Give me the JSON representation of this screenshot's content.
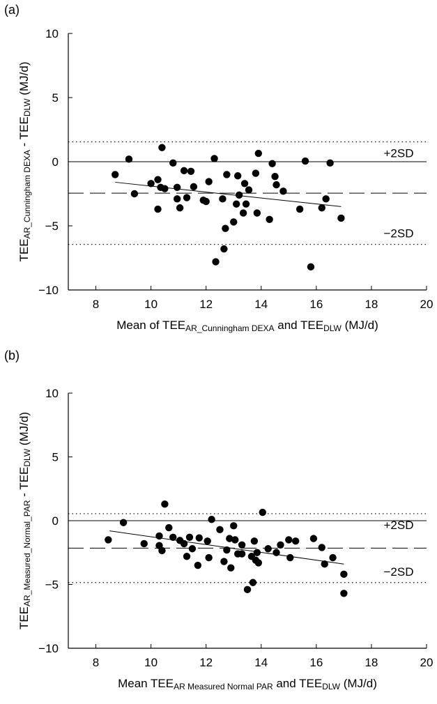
{
  "chart_data": [
    {
      "type": "scatter",
      "panel_label": "(a)",
      "xlabel": {
        "main": "Mean of TEE",
        "sub": "AR_Cunningham DEXA",
        "mid": " and TEE",
        "sub2": "DLW",
        "end": " (MJ/d)"
      },
      "ylabel": {
        "main": "TEE",
        "sub": "AR_Cunningham DEXA",
        "mid": " - TEE",
        "sub2": "DLW",
        "end": " (MJ/d)"
      },
      "xlim": [
        7,
        20
      ],
      "ylim": [
        -10,
        10
      ],
      "x_ticks": [
        8,
        10,
        12,
        14,
        16,
        18,
        20
      ],
      "y_ticks": [
        -10,
        -5,
        0,
        5,
        10
      ],
      "reference_lines": {
        "zero": 0,
        "mean_bias": -2.45,
        "upper_2sd": 1.55,
        "lower_2sd": -6.45
      },
      "sd_labels": {
        "upper": "+2SD",
        "lower": "−2SD"
      },
      "trend_line": {
        "x": [
          8.7,
          16.9
        ],
        "y": [
          -1.6,
          -3.5
        ]
      },
      "points": [
        {
          "x": 8.7,
          "y": -1.0
        },
        {
          "x": 9.2,
          "y": 0.2
        },
        {
          "x": 9.4,
          "y": -2.5
        },
        {
          "x": 10.0,
          "y": -1.7
        },
        {
          "x": 10.25,
          "y": -1.4
        },
        {
          "x": 10.25,
          "y": -3.7
        },
        {
          "x": 10.35,
          "y": -2.0
        },
        {
          "x": 10.4,
          "y": 1.1
        },
        {
          "x": 10.5,
          "y": -2.1
        },
        {
          "x": 10.8,
          "y": -0.1
        },
        {
          "x": 10.95,
          "y": -2.0
        },
        {
          "x": 10.95,
          "y": -2.9
        },
        {
          "x": 11.05,
          "y": -3.6
        },
        {
          "x": 11.2,
          "y": -0.7
        },
        {
          "x": 11.3,
          "y": -2.8
        },
        {
          "x": 11.45,
          "y": -0.75
        },
        {
          "x": 11.55,
          "y": -1.95
        },
        {
          "x": 11.9,
          "y": -3.0
        },
        {
          "x": 12.0,
          "y": -3.1
        },
        {
          "x": 12.1,
          "y": -1.55
        },
        {
          "x": 12.3,
          "y": 0.25
        },
        {
          "x": 12.35,
          "y": -7.8
        },
        {
          "x": 12.6,
          "y": -2.9
        },
        {
          "x": 12.65,
          "y": -6.8
        },
        {
          "x": 12.7,
          "y": -5.2
        },
        {
          "x": 12.75,
          "y": -1.0
        },
        {
          "x": 13.0,
          "y": -4.7
        },
        {
          "x": 13.1,
          "y": -3.3
        },
        {
          "x": 13.15,
          "y": -1.1
        },
        {
          "x": 13.2,
          "y": -2.6
        },
        {
          "x": 13.35,
          "y": -4.0
        },
        {
          "x": 13.4,
          "y": -1.7
        },
        {
          "x": 13.45,
          "y": -3.3
        },
        {
          "x": 13.55,
          "y": -2.2
        },
        {
          "x": 13.8,
          "y": -0.9
        },
        {
          "x": 13.85,
          "y": -4.0
        },
        {
          "x": 13.9,
          "y": 0.65
        },
        {
          "x": 14.3,
          "y": -4.5
        },
        {
          "x": 14.4,
          "y": -0.15
        },
        {
          "x": 14.5,
          "y": -1.15
        },
        {
          "x": 14.55,
          "y": -1.8
        },
        {
          "x": 14.8,
          "y": -2.3
        },
        {
          "x": 15.4,
          "y": -3.7
        },
        {
          "x": 15.6,
          "y": 0.05
        },
        {
          "x": 15.8,
          "y": -8.2
        },
        {
          "x": 16.2,
          "y": -3.6
        },
        {
          "x": 16.35,
          "y": -2.9
        },
        {
          "x": 16.5,
          "y": -0.1
        },
        {
          "x": 16.9,
          "y": -4.4
        }
      ]
    },
    {
      "type": "scatter",
      "panel_label": "(b)",
      "xlabel": {
        "main": "Mean TEE",
        "sub": "AR Measured Normal PAR",
        "mid": " and TEE",
        "sub2": "DLW",
        "end": " (MJ/d)"
      },
      "ylabel": {
        "main": "TEE",
        "sub": "AR_Measured_Normal_PAR",
        "mid": " - TEE",
        "sub2": "DLW",
        "end": " (MJ/d)"
      },
      "xlim": [
        7,
        20
      ],
      "ylim": [
        -10,
        10
      ],
      "x_ticks": [
        8,
        10,
        12,
        14,
        16,
        18,
        20
      ],
      "y_ticks": [
        -10,
        -5,
        0,
        5,
        10
      ],
      "reference_lines": {
        "zero": 0,
        "mean_bias": -2.15,
        "upper_2sd": 0.55,
        "lower_2sd": -4.85
      },
      "sd_labels": {
        "upper": "+2SD",
        "lower": "−2SD"
      },
      "trend_line": {
        "x": [
          8.5,
          17.0
        ],
        "y": [
          -0.8,
          -3.4
        ]
      },
      "points": [
        {
          "x": 8.45,
          "y": -1.5
        },
        {
          "x": 9.0,
          "y": -0.15
        },
        {
          "x": 9.75,
          "y": -1.8
        },
        {
          "x": 10.3,
          "y": -1.2
        },
        {
          "x": 10.3,
          "y": -1.95
        },
        {
          "x": 10.4,
          "y": -2.35
        },
        {
          "x": 10.5,
          "y": 1.3
        },
        {
          "x": 10.65,
          "y": -0.55
        },
        {
          "x": 10.8,
          "y": -1.3
        },
        {
          "x": 11.05,
          "y": -1.55
        },
        {
          "x": 11.2,
          "y": -1.8
        },
        {
          "x": 11.3,
          "y": -2.8
        },
        {
          "x": 11.4,
          "y": -1.3
        },
        {
          "x": 11.5,
          "y": -2.2
        },
        {
          "x": 11.7,
          "y": -3.5
        },
        {
          "x": 11.75,
          "y": -1.35
        },
        {
          "x": 12.05,
          "y": -1.6
        },
        {
          "x": 12.1,
          "y": -2.9
        },
        {
          "x": 12.2,
          "y": 0.1
        },
        {
          "x": 12.5,
          "y": -0.7
        },
        {
          "x": 12.65,
          "y": -3.2
        },
        {
          "x": 12.75,
          "y": -2.3
        },
        {
          "x": 12.85,
          "y": -1.4
        },
        {
          "x": 12.9,
          "y": -3.7
        },
        {
          "x": 13.0,
          "y": -0.4
        },
        {
          "x": 13.05,
          "y": -1.5
        },
        {
          "x": 13.15,
          "y": -2.6
        },
        {
          "x": 13.3,
          "y": -1.9
        },
        {
          "x": 13.3,
          "y": -2.6
        },
        {
          "x": 13.5,
          "y": -5.4
        },
        {
          "x": 13.65,
          "y": -2.8
        },
        {
          "x": 13.7,
          "y": -4.85
        },
        {
          "x": 13.75,
          "y": -1.6
        },
        {
          "x": 13.8,
          "y": -3.1
        },
        {
          "x": 13.85,
          "y": -2.5
        },
        {
          "x": 13.9,
          "y": -3.3
        },
        {
          "x": 14.05,
          "y": 0.65
        },
        {
          "x": 14.25,
          "y": -2.2
        },
        {
          "x": 14.55,
          "y": -2.5
        },
        {
          "x": 14.7,
          "y": -1.9
        },
        {
          "x": 15.0,
          "y": -1.5
        },
        {
          "x": 15.05,
          "y": -2.9
        },
        {
          "x": 15.25,
          "y": -1.6
        },
        {
          "x": 15.9,
          "y": -1.4
        },
        {
          "x": 16.2,
          "y": -2.1
        },
        {
          "x": 16.3,
          "y": -3.4
        },
        {
          "x": 16.6,
          "y": -2.9
        },
        {
          "x": 17.0,
          "y": -4.2
        },
        {
          "x": 17.0,
          "y": -5.7
        }
      ]
    }
  ]
}
